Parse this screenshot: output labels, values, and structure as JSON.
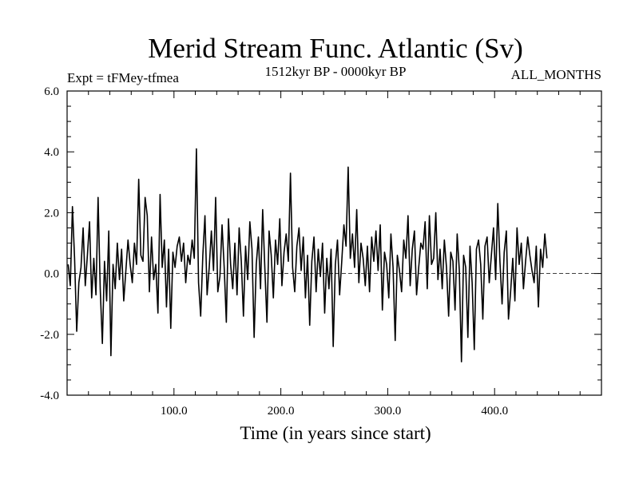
{
  "chart_data": {
    "type": "line",
    "title": "Merid Stream Func. Atlantic (Sv)",
    "subtitle_left": "Expt = tFMey-tfmea",
    "subtitle_center": "1512kyr BP - 0000kyr BP",
    "subtitle_right": "ALL_MONTHS",
    "xlabel": "Time (in years since start)",
    "ylabel": "",
    "xlim": [
      0,
      500
    ],
    "ylim": [
      -4,
      6
    ],
    "x_ticks": [
      100,
      200,
      300,
      400
    ],
    "x_tick_labels": [
      "100.0",
      "200.0",
      "300.0",
      "400.0"
    ],
    "y_ticks": [
      -4,
      -2,
      0,
      2,
      4,
      6
    ],
    "y_tick_labels": [
      "-4.0",
      "-2.0",
      "0.0",
      "2.0",
      "4.0",
      "6.0"
    ],
    "zero_line": 0,
    "series": [
      {
        "name": "Merid Stream Func. Atlantic",
        "x_start": 1,
        "x_step": 2,
        "values": [
          0.3,
          -0.4,
          2.2,
          0.5,
          -1.9,
          -0.3,
          0.2,
          1.5,
          -0.4,
          0.6,
          1.7,
          -0.8,
          0.5,
          -0.7,
          2.5,
          -0.5,
          -2.3,
          0.4,
          -0.9,
          1.4,
          -2.7,
          0.3,
          -0.5,
          1.0,
          -0.2,
          0.8,
          -0.9,
          0.1,
          1.1,
          0.3,
          -0.3,
          1.0,
          0.3,
          3.1,
          0.6,
          0.4,
          2.5,
          1.9,
          -0.6,
          1.2,
          -0.2,
          0.3,
          -1.3,
          2.6,
          0.2,
          1.1,
          -1.1,
          0.8,
          -1.8,
          0.7,
          0.2,
          0.9,
          1.2,
          0.4,
          1.0,
          -0.3,
          0.6,
          0.3,
          1.1,
          0.5,
          4.1,
          -0.3,
          -1.4,
          0.6,
          1.9,
          -0.7,
          0.2,
          1.4,
          0.1,
          2.5,
          -0.6,
          -0.1,
          1.6,
          0.2,
          -1.6,
          1.8,
          0.3,
          -0.5,
          1.0,
          -0.7,
          1.5,
          0.4,
          -1.4,
          0.9,
          -0.2,
          1.7,
          0.8,
          -2.1,
          0.3,
          1.2,
          -0.5,
          2.1,
          0.2,
          -1.6,
          1.4,
          0.6,
          -0.8,
          1.1,
          0.3,
          1.8,
          -0.4,
          0.7,
          1.3,
          0.4,
          3.3,
          0.2,
          -0.6,
          0.9,
          1.5,
          0.1,
          1.2,
          -0.8,
          0.6,
          -1.7,
          0.4,
          1.2,
          -0.6,
          0.8,
          -0.1,
          1.0,
          -1.3,
          0.5,
          -0.5,
          0.8,
          -2.4,
          0.3,
          1.1,
          -0.7,
          0.4,
          1.6,
          0.9,
          3.5,
          0.5,
          1.3,
          0.2,
          2.1,
          -0.3,
          1.0,
          0.5,
          -0.4,
          0.9,
          -0.6,
          1.2,
          0.4,
          1.4,
          0.1,
          1.6,
          -1.2,
          0.7,
          0.3,
          -0.8,
          1.3,
          0.2,
          -2.2,
          0.6,
          0.1,
          -0.6,
          1.1,
          0.5,
          1.9,
          -0.4,
          0.8,
          1.4,
          -0.7,
          0.2,
          1.0,
          0.8,
          1.7,
          -0.5,
          1.9,
          0.3,
          0.5,
          2.0,
          -0.2,
          0.8,
          -0.5,
          1.1,
          0.2,
          -1.4,
          0.7,
          0.4,
          -1.2,
          1.3,
          0.1,
          -2.9,
          0.6,
          0.2,
          -2.1,
          0.9,
          -0.3,
          -2.5,
          0.8,
          1.1,
          0.3,
          -1.5,
          0.9,
          1.2,
          -0.3,
          0.6,
          1.5,
          -0.2,
          2.3,
          0.4,
          -1.0,
          0.7,
          1.4,
          -1.5,
          -0.6,
          0.5,
          -0.9,
          1.5,
          0.3,
          1.0,
          -0.5,
          0.4,
          1.2,
          0.6,
          0.1,
          -0.3,
          0.9,
          -1.1,
          0.8,
          0.2,
          1.3,
          0.5
        ]
      }
    ]
  }
}
